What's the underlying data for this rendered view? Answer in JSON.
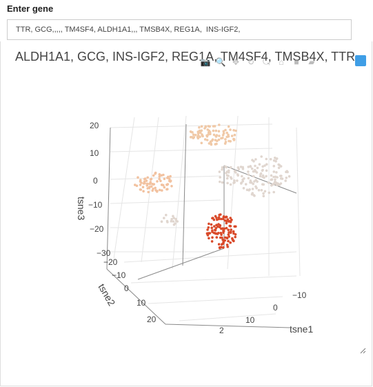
{
  "form": {
    "label": "Enter gene",
    "value": "TTR, GCG,,,,, TM4SF4, ALDH1A1,,, TMSB4X, REG1A,  INS-IGF2,"
  },
  "plot": {
    "title": "ALDH1A1, GCG, INS-IGF2, REG1A, TM4SF4, TMSB4X, TTR",
    "modebar": [
      "camera-icon",
      "zoom-icon",
      "pan-icon",
      "orbit-icon",
      "turntable-icon",
      "reset-icon",
      "home-icon",
      "hover-icon"
    ],
    "colors": {
      "low": "#e0d6cf",
      "mid": "#f0c9a7",
      "high": "#d94a2a"
    }
  },
  "chart_data": {
    "type": "scatter",
    "title": "ALDH1A1, GCG, INS-IGF2, REG1A, TM4SF4, TMSB4X, TTR",
    "zlabel": "tsne3",
    "ylabel": "tsne2",
    "xlabel": "tsne1",
    "z_ticks": [
      "20",
      "10",
      "0",
      "−10",
      "−20",
      "−30"
    ],
    "y_ticks": [
      "−20",
      "−10",
      "0",
      "10",
      "20"
    ],
    "x_ticks": [
      "−10",
      "0",
      "10",
      "2"
    ],
    "clusters": [
      {
        "name": "top-cluster",
        "color": "#f0c9a7",
        "cx": 310,
        "cy": 195,
        "rx": 35,
        "ry": 15,
        "n": 90
      },
      {
        "name": "left-cluster",
        "color": "#f2c2a0",
        "cx": 225,
        "cy": 265,
        "rx": 30,
        "ry": 15,
        "n": 70
      },
      {
        "name": "right-cluster",
        "color": "#e0d6cf",
        "cx": 380,
        "cy": 255,
        "rx": 40,
        "ry": 30,
        "n": 120
      },
      {
        "name": "mid-cluster",
        "color": "#e0d6cf",
        "cx": 330,
        "cy": 255,
        "rx": 15,
        "ry": 15,
        "n": 25
      },
      {
        "name": "lower-left-cluster",
        "color": "#e0d6cf",
        "cx": 250,
        "cy": 318,
        "rx": 18,
        "ry": 8,
        "n": 15
      },
      {
        "name": "red-cluster",
        "color": "#d94a2a",
        "cx": 322,
        "cy": 335,
        "rx": 22,
        "ry": 25,
        "n": 110
      }
    ]
  }
}
